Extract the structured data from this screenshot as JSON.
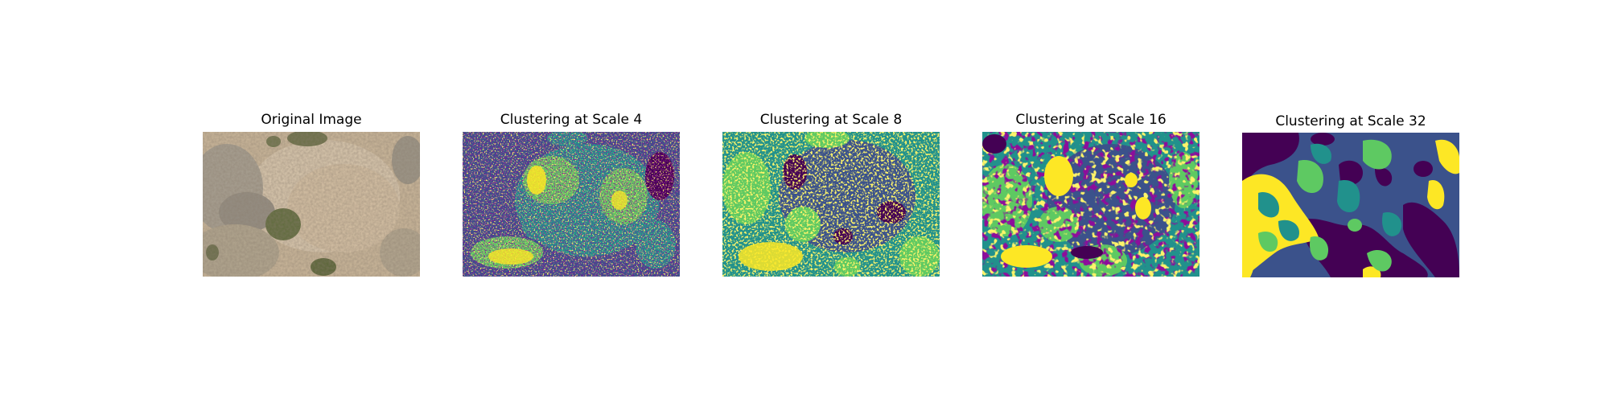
{
  "figure": {
    "panels": [
      {
        "title": "Original Image",
        "kind": "photo"
      },
      {
        "title": "Clustering at Scale 4",
        "kind": "cluster"
      },
      {
        "title": "Clustering at Scale 8",
        "kind": "cluster"
      },
      {
        "title": "Clustering at Scale 16",
        "kind": "cluster"
      },
      {
        "title": "Clustering at Scale 32",
        "kind": "cluster"
      }
    ],
    "cluster_palette": {
      "dark_purple": "#440154",
      "blue": "#3b528b",
      "teal": "#21918c",
      "green": "#5ec962",
      "yellow": "#fde725"
    },
    "photo_palette": {
      "dry_ground": "#d6c3a5",
      "dry_brush": "#b9aa96",
      "gray_shrub": "#8e8a82",
      "green_shrub": "#5f6b3c"
    }
  }
}
